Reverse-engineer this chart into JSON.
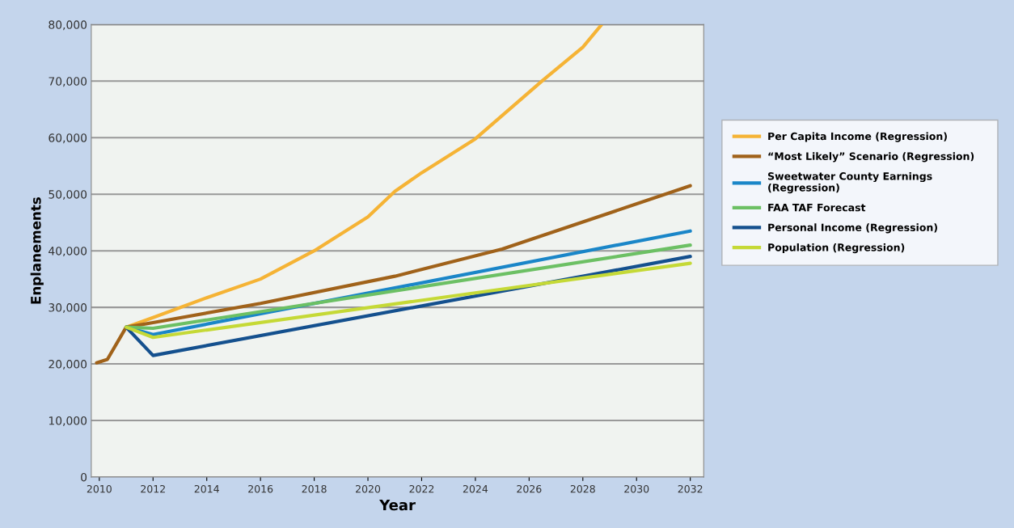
{
  "chart_data": {
    "type": "line",
    "xlabel": "Year",
    "ylabel": "Enplanements",
    "xlim": [
      2009.7,
      2032.5
    ],
    "xticks": [
      2010,
      2012,
      2014,
      2016,
      2018,
      2020,
      2022,
      2024,
      2026,
      2028,
      2030,
      2032
    ],
    "ylim": [
      0,
      80000
    ],
    "yticks": [
      {
        "value": 0,
        "label": "0"
      },
      {
        "value": 10000,
        "label": "10,000"
      },
      {
        "value": 20000,
        "label": "20,000"
      },
      {
        "value": 30000,
        "label": "30,000"
      },
      {
        "value": 40000,
        "label": "40,000"
      },
      {
        "value": 50000,
        "label": "50,000"
      },
      {
        "value": 60000,
        "label": "60,000"
      },
      {
        "value": 70000,
        "label": "70,000"
      },
      {
        "value": 80000,
        "label": "80,000"
      }
    ],
    "grid": "y",
    "legend": "right",
    "marker": "none",
    "line_style": "solid",
    "series": [
      {
        "name": "Per Capita Income (Regression)",
        "color": "#f5b335",
        "x": [
          2011,
          2012,
          2014,
          2016,
          2018,
          2020,
          2021,
          2022,
          2024,
          2026.5,
          2028,
          2028.7
        ],
        "values": [
          26500,
          28200,
          31700,
          35000,
          40000,
          46000,
          50500,
          53800,
          59800,
          70100,
          76000,
          80000
        ]
      },
      {
        "name": "“Most Likely” Scenario (Regression)",
        "color": "#a0621a",
        "x": [
          2009.9,
          2010.3,
          2011,
          2012,
          2016,
          2021,
          2025,
          2032
        ],
        "values": [
          20200,
          20800,
          26500,
          27300,
          30700,
          35500,
          40300,
          51500
        ]
      },
      {
        "name": "Sweetwater County Earnings\n(Regression)",
        "color": "#1a86c8",
        "x": [
          2011,
          2012,
          2032
        ],
        "values": [
          26500,
          25200,
          43500
        ]
      },
      {
        "name": "FAA TAF Forecast",
        "color": "#6cc064",
        "x": [
          2011,
          2012,
          2032
        ],
        "values": [
          26500,
          26300,
          41000
        ]
      },
      {
        "name": "Personal Income (Regression)",
        "color": "#14508e",
        "x": [
          2011,
          2012,
          2032
        ],
        "values": [
          26500,
          21500,
          39000
        ]
      },
      {
        "name": "Population (Regression)",
        "color": "#c5d936",
        "x": [
          2011,
          2012,
          2032
        ],
        "values": [
          26500,
          24700,
          37800
        ]
      }
    ]
  }
}
